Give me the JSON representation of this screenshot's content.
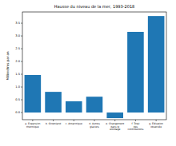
{
  "chart_data": {
    "type": "bar",
    "title": "Hausse du niveau de la mer, 1993-2018",
    "y_label": "Millimètres par an",
    "categories": [
      "a. Expansion thermique",
      "b. Groenland",
      "c. Antarctique",
      "d. Autres glaciers",
      "e. Changement dans le stockage",
      "f. Total des contributions",
      "g. Élévation observée"
    ],
    "values": [
      1.47,
      0.81,
      0.44,
      0.62,
      -0.22,
      3.16,
      3.78
    ],
    "color": "#1f77b4",
    "ylim": [
      -0.28,
      3.94
    ],
    "yticks": [
      {
        "value": 0,
        "label": "0.0"
      },
      0.5,
      {
        "value": 1,
        "label": "1.0"
      },
      1.5,
      {
        "value": 2,
        "label": "2.0"
      },
      2.5,
      {
        "value": 3,
        "label": "3.0"
      },
      3.5
    ],
    "grid": false
  }
}
